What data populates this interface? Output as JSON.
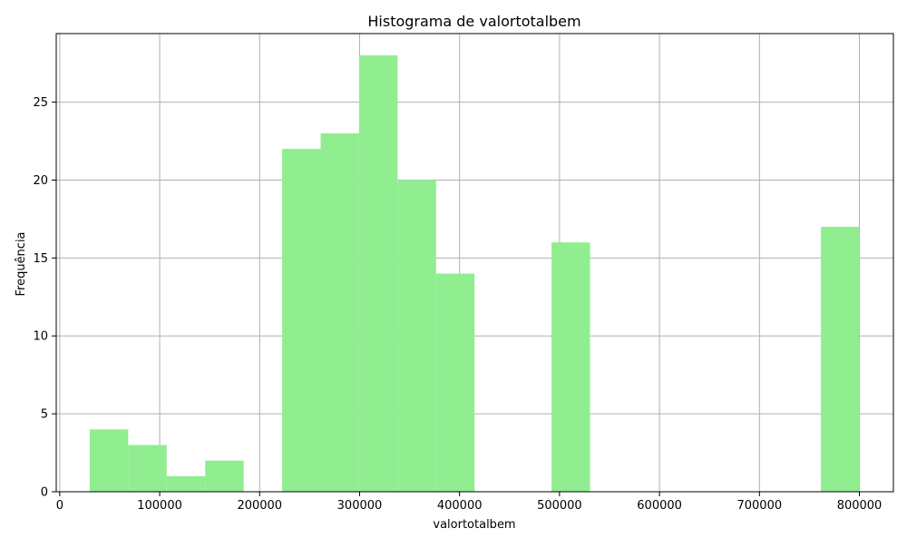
{
  "chart_data": {
    "type": "bar",
    "title": "Histograma de valortotalbem",
    "xlabel": "valortotalbem",
    "ylabel": "Frequência",
    "xlim": [
      -3500,
      834000
    ],
    "ylim": [
      0,
      29.4
    ],
    "grid": true,
    "bar_color": "#90ee90",
    "bin_edges": [
      30000,
      68500,
      107000,
      145500,
      184000,
      222500,
      261000,
      299500,
      338000,
      376500,
      415000,
      453500,
      492000,
      530500,
      569000,
      607500,
      646000,
      684500,
      723000,
      761500,
      800000
    ],
    "values": [
      4,
      3,
      1,
      2,
      0,
      22,
      23,
      28,
      20,
      14,
      0,
      0,
      16,
      0,
      0,
      0,
      0,
      0,
      0,
      17
    ],
    "xticks": [
      0,
      100000,
      200000,
      300000,
      400000,
      500000,
      600000,
      700000,
      800000
    ],
    "xtick_labels": [
      "0",
      "100000",
      "200000",
      "300000",
      "400000",
      "500000",
      "600000",
      "700000",
      "800000"
    ],
    "yticks": [
      0,
      5,
      10,
      15,
      20,
      25
    ],
    "ytick_labels": [
      "0",
      "5",
      "10",
      "15",
      "20",
      "25"
    ]
  }
}
